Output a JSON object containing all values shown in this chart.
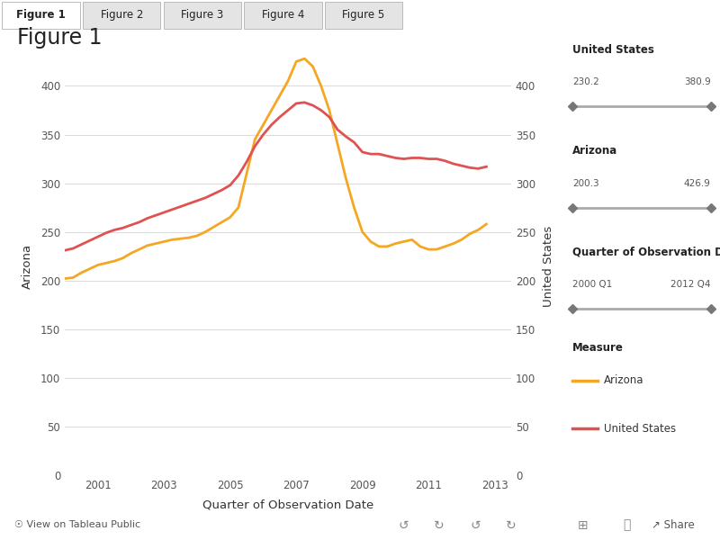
{
  "title": "Figure 1",
  "xlabel": "Quarter of Observation Date",
  "ylabel_left": "Arizona",
  "ylabel_right": "United States",
  "tab_labels": [
    "Figure 1",
    "Figure 2",
    "Figure 3",
    "Figure 4",
    "Figure 5"
  ],
  "xtick_years": [
    2001,
    2003,
    2005,
    2007,
    2009,
    2011,
    2013
  ],
  "yticks_left": [
    0,
    50,
    100,
    150,
    200,
    250,
    300,
    350,
    400
  ],
  "yticks_right": [
    0,
    50,
    100,
    150,
    200,
    250,
    300,
    350,
    400
  ],
  "ylim_max": 430,
  "xlim_start": 2000.0,
  "xlim_end": 2013.5,
  "arizona_color": "#F5A623",
  "us_color": "#E05252",
  "line_width": 2.0,
  "background_color": "#FFFFFF",
  "grid_color": "#DDDDDD",
  "legend_items": [
    "Arizona",
    "United States"
  ],
  "legend_colors": [
    "#F5A623",
    "#E05252"
  ],
  "right_panel_labels": [
    "United States",
    "Arizona",
    "Quarter of Observation D..."
  ],
  "right_panel_min": [
    "230.2",
    "200.3",
    "2000 Q1"
  ],
  "right_panel_max": [
    "380.9",
    "426.9",
    "2012 Q4"
  ],
  "measure_label": "Measure",
  "arizona_x": [
    2000.0,
    2000.25,
    2000.5,
    2000.75,
    2001.0,
    2001.25,
    2001.5,
    2001.75,
    2002.0,
    2002.25,
    2002.5,
    2002.75,
    2003.0,
    2003.25,
    2003.5,
    2003.75,
    2004.0,
    2004.25,
    2004.5,
    2004.75,
    2005.0,
    2005.25,
    2005.5,
    2005.75,
    2006.0,
    2006.25,
    2006.5,
    2006.75,
    2007.0,
    2007.25,
    2007.5,
    2007.75,
    2008.0,
    2008.25,
    2008.5,
    2008.75,
    2009.0,
    2009.25,
    2009.5,
    2009.75,
    2010.0,
    2010.25,
    2010.5,
    2010.75,
    2011.0,
    2011.25,
    2011.5,
    2011.75,
    2012.0,
    2012.25,
    2012.5,
    2012.75
  ],
  "arizona_y": [
    202,
    203,
    208,
    212,
    216,
    218,
    220,
    223,
    228,
    232,
    236,
    238,
    240,
    242,
    243,
    244,
    246,
    250,
    255,
    260,
    265,
    275,
    310,
    345,
    360,
    375,
    390,
    405,
    425,
    428,
    420,
    400,
    375,
    340,
    305,
    275,
    250,
    240,
    235,
    235,
    238,
    240,
    242,
    235,
    232,
    232,
    235,
    238,
    242,
    248,
    252,
    258
  ],
  "us_x": [
    2000.0,
    2000.25,
    2000.5,
    2000.75,
    2001.0,
    2001.25,
    2001.5,
    2001.75,
    2002.0,
    2002.25,
    2002.5,
    2002.75,
    2003.0,
    2003.25,
    2003.5,
    2003.75,
    2004.0,
    2004.25,
    2004.5,
    2004.75,
    2005.0,
    2005.25,
    2005.5,
    2005.75,
    2006.0,
    2006.25,
    2006.5,
    2006.75,
    2007.0,
    2007.25,
    2007.5,
    2007.75,
    2008.0,
    2008.25,
    2008.5,
    2008.75,
    2009.0,
    2009.25,
    2009.5,
    2009.75,
    2010.0,
    2010.25,
    2010.5,
    2010.75,
    2011.0,
    2011.25,
    2011.5,
    2011.75,
    2012.0,
    2012.25,
    2012.5,
    2012.75
  ],
  "us_y": [
    231,
    233,
    237,
    241,
    245,
    249,
    252,
    254,
    257,
    260,
    264,
    267,
    270,
    273,
    276,
    279,
    282,
    285,
    289,
    293,
    298,
    308,
    322,
    338,
    350,
    360,
    368,
    375,
    382,
    383,
    380,
    375,
    368,
    355,
    348,
    342,
    332,
    330,
    330,
    328,
    326,
    325,
    326,
    326,
    325,
    325,
    323,
    320,
    318,
    316,
    315,
    317
  ]
}
